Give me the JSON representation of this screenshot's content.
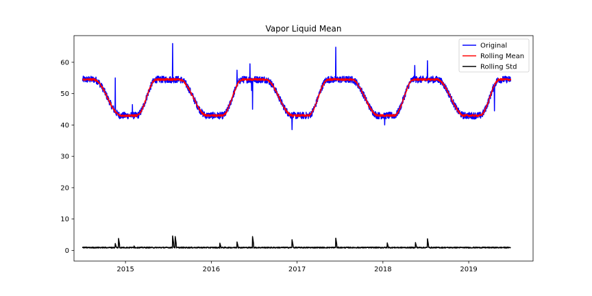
{
  "chart_data": {
    "type": "line",
    "title": "Vapor Liquid Mean",
    "xlabel": "",
    "ylabel": "",
    "xlim": [
      2014.4,
      2019.75
    ],
    "ylim": [
      -3.4,
      68.5
    ],
    "x_ticks": [
      2015,
      2016,
      2017,
      2018,
      2019
    ],
    "x_tick_labels": [
      "2015",
      "2016",
      "2017",
      "2018",
      "2019"
    ],
    "y_ticks": [
      0,
      10,
      20,
      30,
      40,
      50,
      60
    ],
    "y_tick_labels": [
      "0",
      "10",
      "20",
      "30",
      "40",
      "50",
      "60"
    ],
    "grid": false,
    "legend_position": "top-right",
    "seasonal_model": {
      "x_start": 2014.5,
      "x_end": 2019.49,
      "plateau_high": 54.5,
      "plateau_low": 43.0,
      "rise_start": 0.13,
      "rise_end": 0.36,
      "fall_start": 0.63,
      "fall_end": 0.95
    },
    "series": [
      {
        "name": "Original",
        "color": "#0000ff",
        "noise_amplitude": 1.1,
        "spikes": [
          [
            2014.88,
            55
          ],
          [
            2015.08,
            46.5
          ],
          [
            2015.55,
            66
          ],
          [
            2015.62,
            54
          ],
          [
            2016.3,
            57.5
          ],
          [
            2016.45,
            59.5
          ],
          [
            2016.47,
            51
          ],
          [
            2016.48,
            45
          ],
          [
            2016.94,
            38.5
          ],
          [
            2017.45,
            64.8
          ],
          [
            2018.02,
            40
          ],
          [
            2018.37,
            59
          ],
          [
            2018.52,
            60.5
          ],
          [
            2019.3,
            44.5
          ]
        ],
        "points": []
      },
      {
        "name": "Rolling Mean",
        "color": "#ff0000",
        "noise_amplitude": 0.35,
        "spikes": [],
        "points": []
      },
      {
        "name": "Rolling Std",
        "color": "#000000",
        "baseline": 0.9,
        "noise_amplitude": 0.35,
        "spikes": [
          [
            2014.88,
            2.2
          ],
          [
            2014.92,
            3.8
          ],
          [
            2015.1,
            1.4
          ],
          [
            2015.55,
            4.6
          ],
          [
            2015.58,
            4.4
          ],
          [
            2016.1,
            2.3
          ],
          [
            2016.3,
            2.7
          ],
          [
            2016.48,
            4.4
          ],
          [
            2016.94,
            3.4
          ],
          [
            2017.45,
            3.9
          ],
          [
            2018.05,
            2.4
          ],
          [
            2018.38,
            2.5
          ],
          [
            2018.52,
            3.7
          ]
        ],
        "points": []
      }
    ]
  }
}
